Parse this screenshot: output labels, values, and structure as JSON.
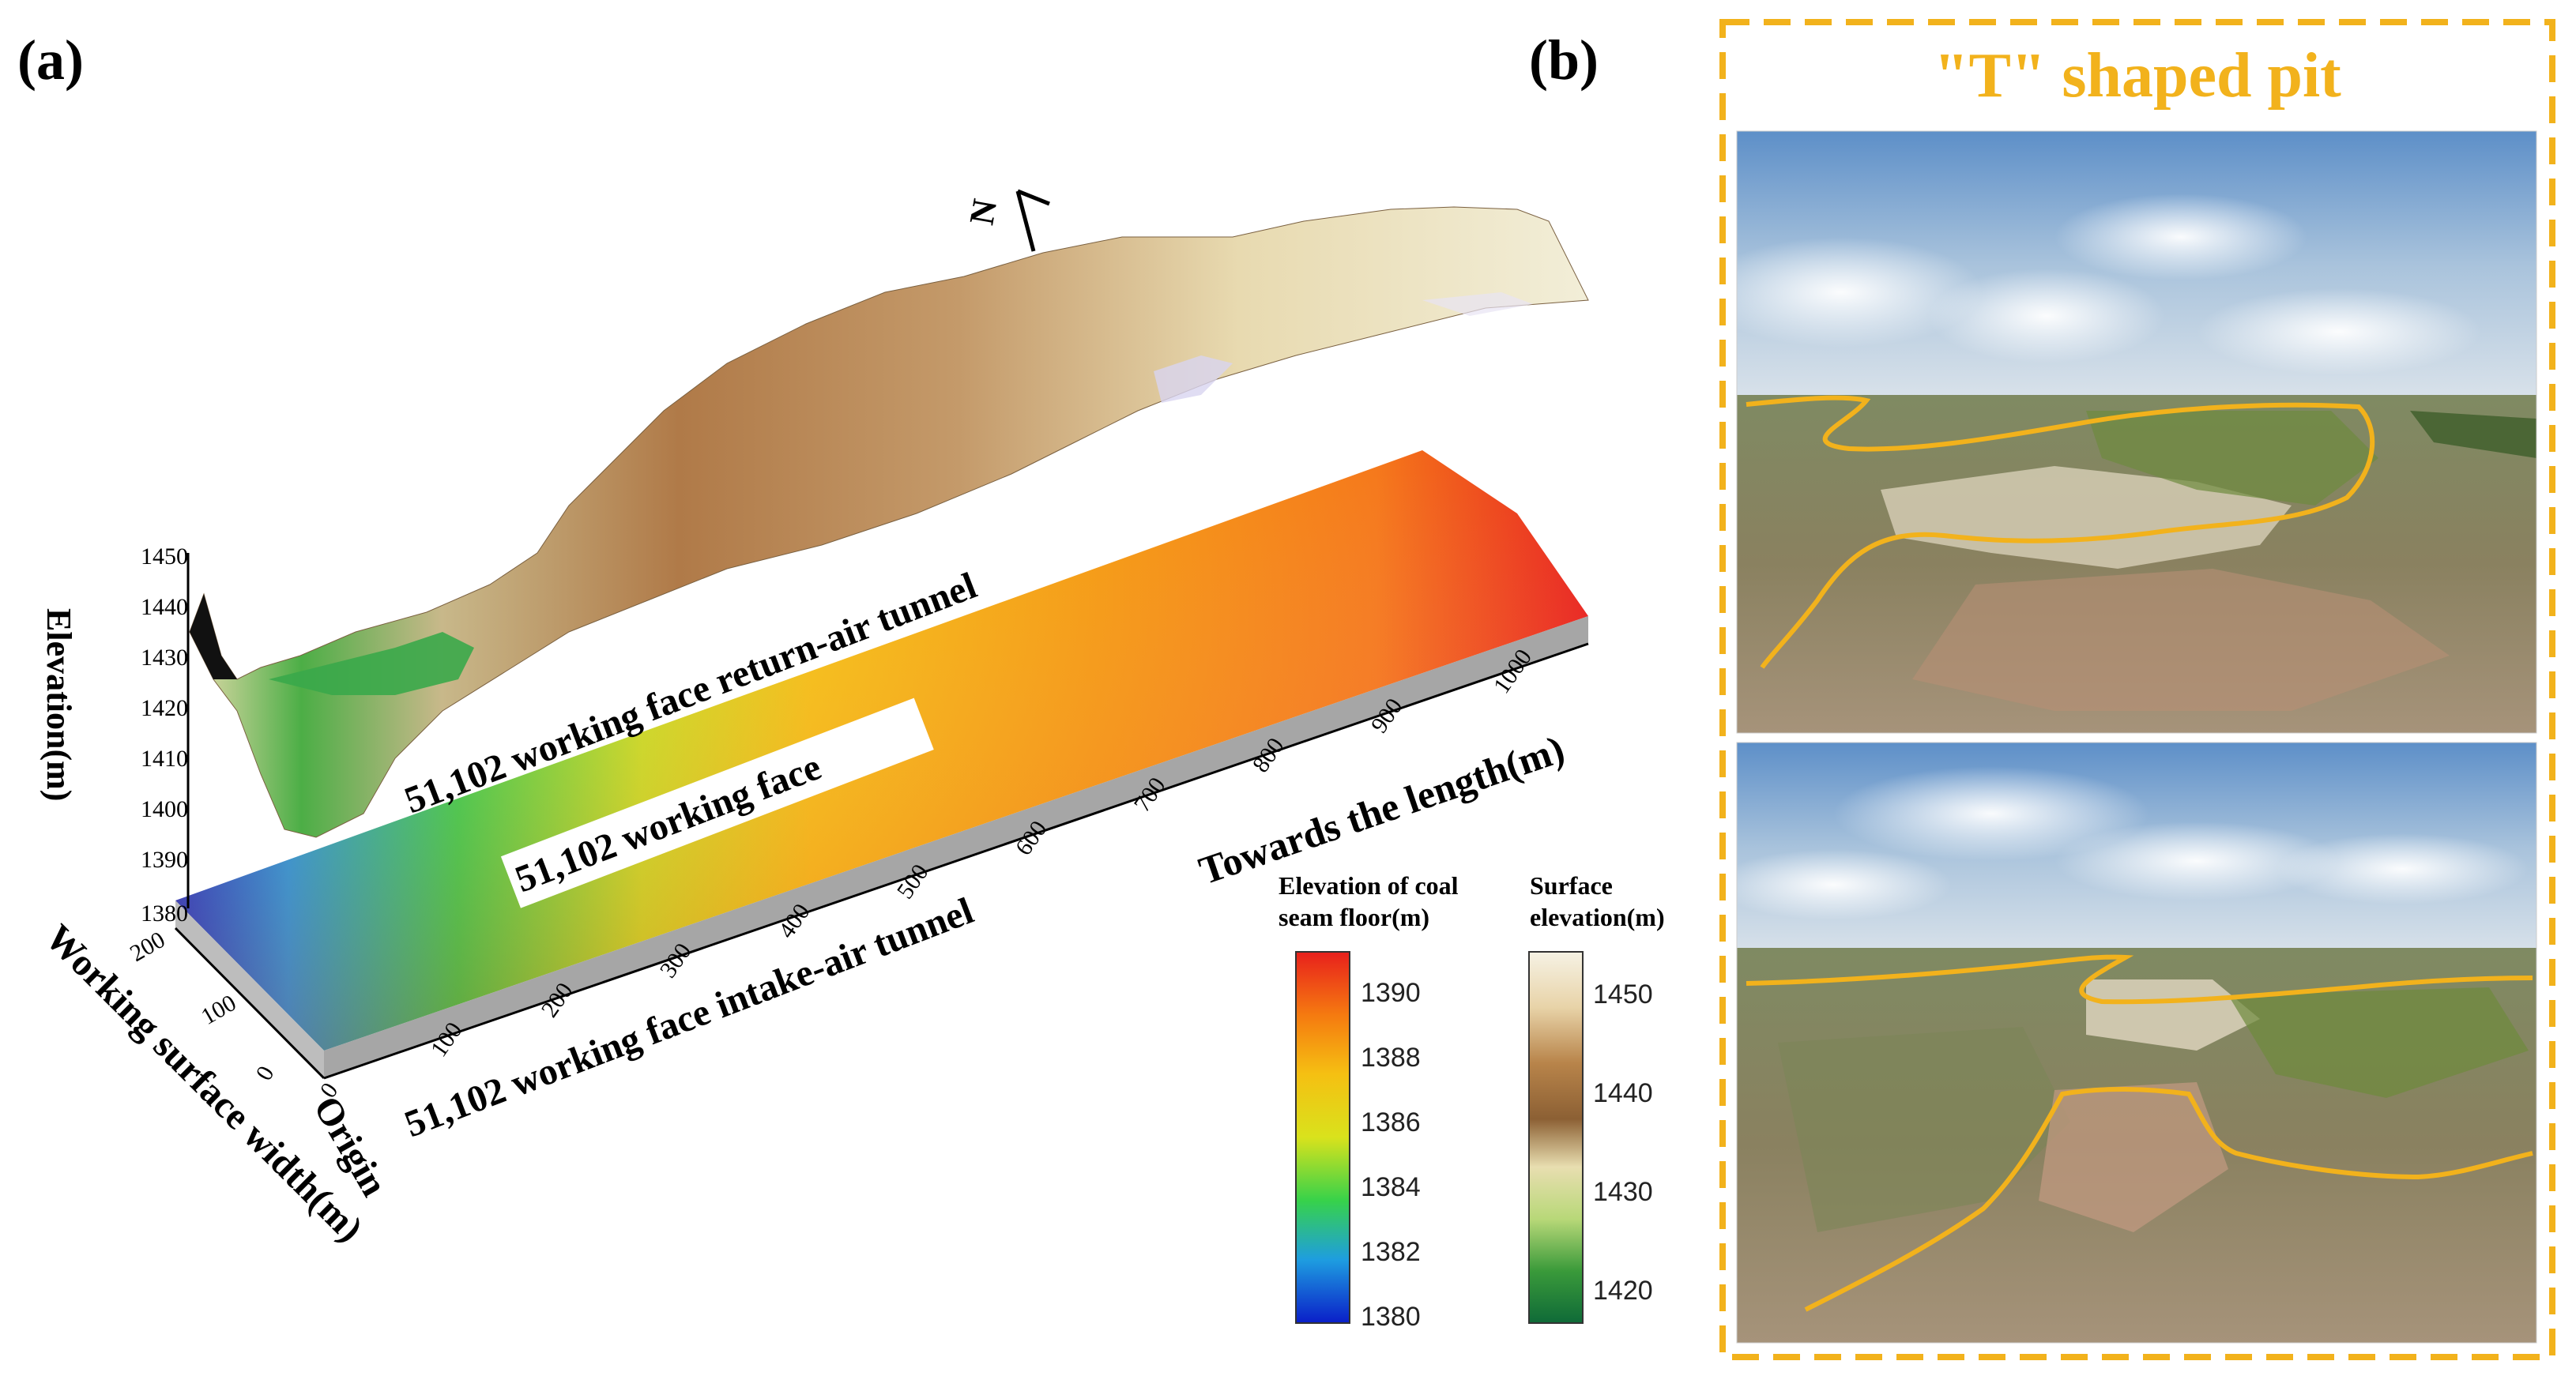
{
  "panel_a": {
    "label": "(a)",
    "north_label": "N",
    "z_axis": {
      "title": "Elevation(m)",
      "ticks": [
        "1380",
        "1390",
        "1400",
        "1410",
        "1420",
        "1430",
        "1440",
        "1450"
      ]
    },
    "y_axis": {
      "title": "Working surface width(m)",
      "ticks": [
        "0",
        "100",
        "200"
      ]
    },
    "x_axis": {
      "title": "Towards the length(m)",
      "ticks": [
        "0",
        "100",
        "200",
        "300",
        "400",
        "500",
        "600",
        "700",
        "800",
        "900",
        "1000"
      ]
    },
    "origin_label": "Origin",
    "annotations": {
      "return_air_tunnel": "51,102 working face return-air tunnel",
      "working_face": "51,102 working face",
      "intake_air_tunnel": "51,102 working face intake-air tunnel"
    },
    "colorbar_floor": {
      "title_line1": "Elevation of coal",
      "title_line2": "seam floor(m)",
      "ticks": [
        "1390",
        "1388",
        "1386",
        "1384",
        "1382",
        "1380"
      ],
      "colors": [
        "#e8201c",
        "#f57a10",
        "#f5c012",
        "#d9e21c",
        "#37d24a",
        "#1e9de0",
        "#0a1ec8"
      ]
    },
    "colorbar_surface": {
      "title_line1": "Surface",
      "title_line2": "elevation(m)",
      "ticks": [
        "1450",
        "1440",
        "1430",
        "1420"
      ],
      "colors": [
        "#f6f2e4",
        "#e8d3a8",
        "#b8844a",
        "#8c6034",
        "#e8deb0",
        "#b8d878",
        "#3a9a3a",
        "#0f6a38"
      ]
    }
  },
  "panel_b": {
    "label": "(b)",
    "title": "\"T\" shaped pit",
    "border_color": "#F2B21C",
    "outline_color": "#F2B21C"
  }
}
